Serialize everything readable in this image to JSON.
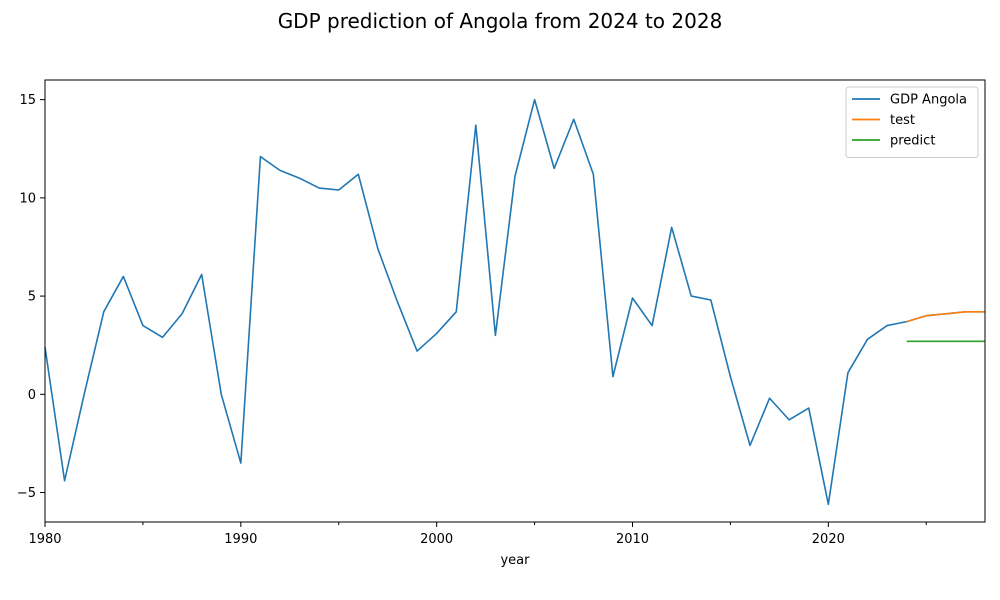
{
  "chart_data": {
    "type": "line",
    "title": "GDP prediction of Angola from 2024 to 2028",
    "xlabel": "year",
    "ylabel": "",
    "xlim": [
      1980,
      2028
    ],
    "ylim": [
      -6.5,
      16
    ],
    "xticks": [
      1980,
      1990,
      2000,
      2010,
      2020
    ],
    "yticks": [
      -5,
      0,
      5,
      10,
      15
    ],
    "legend_position": "top-right",
    "grid": false,
    "series": [
      {
        "name": "GDP Angola",
        "color": "#1f77b4",
        "x": [
          1980,
          1981,
          1982,
          1983,
          1984,
          1985,
          1986,
          1987,
          1988,
          1989,
          1990,
          1991,
          1992,
          1993,
          1994,
          1995,
          1996,
          1997,
          1998,
          1999,
          2000,
          2001,
          2002,
          2003,
          2004,
          2005,
          2006,
          2007,
          2008,
          2009,
          2010,
          2011,
          2012,
          2013,
          2014,
          2015,
          2016,
          2017,
          2018,
          2019,
          2020,
          2021,
          2022,
          2023,
          2024,
          2025,
          2026,
          2027,
          2028
        ],
        "y": [
          2.4,
          -4.4,
          0.0,
          4.2,
          6.0,
          3.5,
          2.9,
          4.1,
          6.1,
          0.0,
          -3.5,
          12.1,
          11.4,
          11.0,
          10.5,
          10.4,
          11.2,
          7.4,
          4.7,
          2.2,
          3.1,
          4.2,
          13.7,
          3.0,
          11.1,
          15.0,
          11.5,
          14.0,
          11.2,
          0.9,
          4.9,
          3.5,
          8.5,
          5.0,
          4.8,
          0.9,
          -2.6,
          -0.2,
          -1.3,
          -0.7,
          -5.6,
          1.1,
          2.8,
          3.5,
          3.7,
          4.0,
          4.1,
          4.2,
          4.2
        ]
      },
      {
        "name": "test",
        "color": "#ff7f0e",
        "x": [
          2024,
          2025,
          2026,
          2027,
          2028
        ],
        "y": [
          3.7,
          4.0,
          4.1,
          4.2,
          4.2
        ]
      },
      {
        "name": "predict",
        "color": "#2ca02c",
        "x": [
          2024,
          2025,
          2026,
          2027,
          2028
        ],
        "y": [
          2.7,
          2.7,
          2.7,
          2.7,
          2.7
        ]
      }
    ]
  }
}
